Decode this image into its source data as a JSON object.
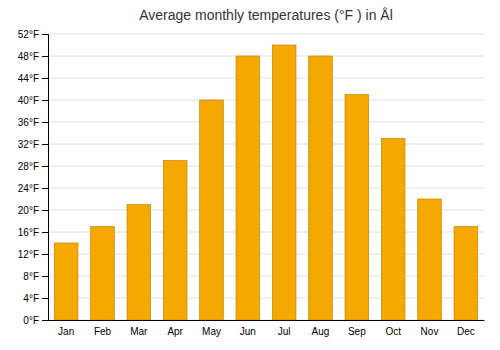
{
  "chart_data": {
    "type": "bar",
    "title": "Average monthly temperatures (°F ) in Ål",
    "categories": [
      "Jan",
      "Feb",
      "Mar",
      "Apr",
      "May",
      "Jun",
      "Jul",
      "Aug",
      "Sep",
      "Oct",
      "Nov",
      "Dec"
    ],
    "values": [
      14,
      17,
      21,
      29,
      40,
      48,
      50,
      48,
      41,
      33,
      22,
      17
    ],
    "color": "#F5A800",
    "ylim": [
      0,
      52
    ],
    "yticks": [
      {
        "value": 0,
        "label": "0°F"
      },
      {
        "value": 4,
        "label": "4°F"
      },
      {
        "value": 8,
        "label": "8°F"
      },
      {
        "value": 12,
        "label": "12°F"
      },
      {
        "value": 16,
        "label": "16°F"
      },
      {
        "value": 20,
        "label": "20°F"
      },
      {
        "value": 24,
        "label": "24°F"
      },
      {
        "value": 28,
        "label": "28°F"
      },
      {
        "value": 32,
        "label": "32°F"
      },
      {
        "value": 36,
        "label": "36°F"
      },
      {
        "value": 40,
        "label": "40°F"
      },
      {
        "value": 44,
        "label": "44°F"
      },
      {
        "value": 48,
        "label": "48°F"
      },
      {
        "value": 52,
        "label": "52°F"
      }
    ],
    "grid": true
  }
}
